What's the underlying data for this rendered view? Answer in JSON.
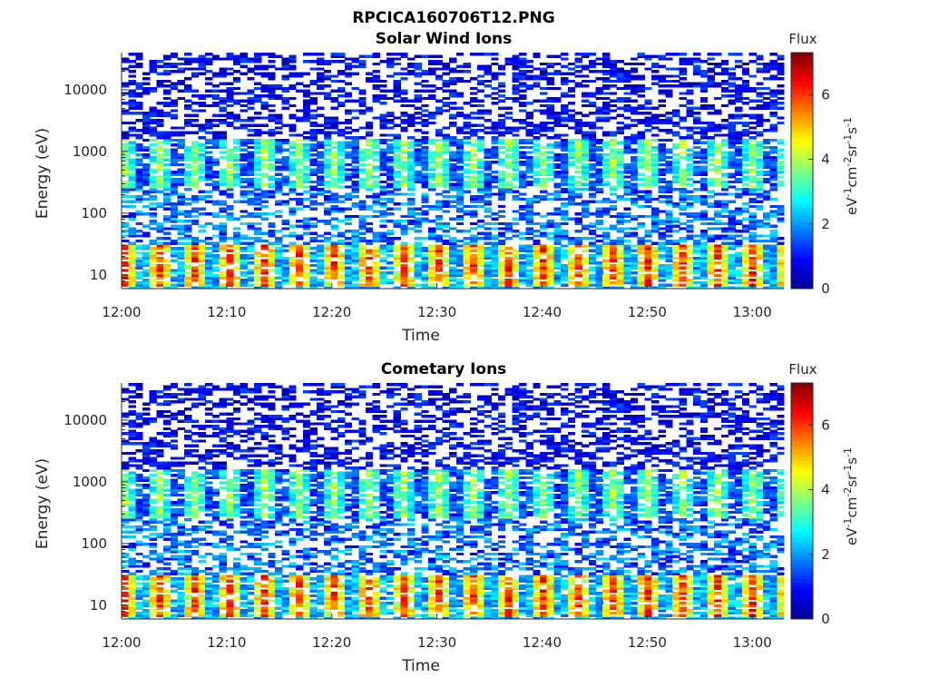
{
  "figure_title": "RPCICA160706T12.PNG",
  "colors": {
    "colormap": [
      "#00008f",
      "#0000ff",
      "#0080ff",
      "#00ffff",
      "#80ff80",
      "#ffff00",
      "#ff8000",
      "#ff0000",
      "#800000"
    ],
    "background": "#ffffff",
    "axis": "#262626"
  },
  "chart_data": [
    {
      "type": "heatmap",
      "title": "Solar Wind Ions",
      "xlabel": "Time",
      "ylabel": "Energy (eV)",
      "yscale": "log",
      "xlim": [
        "12:00",
        "13:03"
      ],
      "ylim": [
        6,
        40000
      ],
      "xticks": [
        "12:00",
        "12:10",
        "12:20",
        "12:30",
        "12:40",
        "12:50",
        "13:00"
      ],
      "yticks": [
        "10",
        "100",
        "1000",
        "10000"
      ],
      "colorbar": {
        "title": "Flux",
        "label": "eV-1cm-2sr-1s-1",
        "ticks": [
          "0",
          "2",
          "4",
          "6"
        ],
        "range": [
          0,
          7.3
        ]
      },
      "cells": {
        "time_bins": 95,
        "energy_bins": 96,
        "seed": 3
      }
    },
    {
      "type": "heatmap",
      "title": "Cometary Ions",
      "xlabel": "Time",
      "ylabel": "Energy (eV)",
      "yscale": "log",
      "xlim": [
        "12:00",
        "13:03"
      ],
      "ylim": [
        6,
        40000
      ],
      "xticks": [
        "12:00",
        "12:10",
        "12:20",
        "12:30",
        "12:40",
        "12:50",
        "13:00"
      ],
      "yticks": [
        "10",
        "100",
        "1000",
        "10000"
      ],
      "colorbar": {
        "title": "Flux",
        "label": "eV-1cm-2sr-1s-1",
        "ticks": [
          "0",
          "2",
          "4",
          "6"
        ],
        "range": [
          0,
          7.3
        ]
      },
      "cells": {
        "time_bins": 95,
        "energy_bins": 96,
        "seed": 3
      }
    }
  ]
}
